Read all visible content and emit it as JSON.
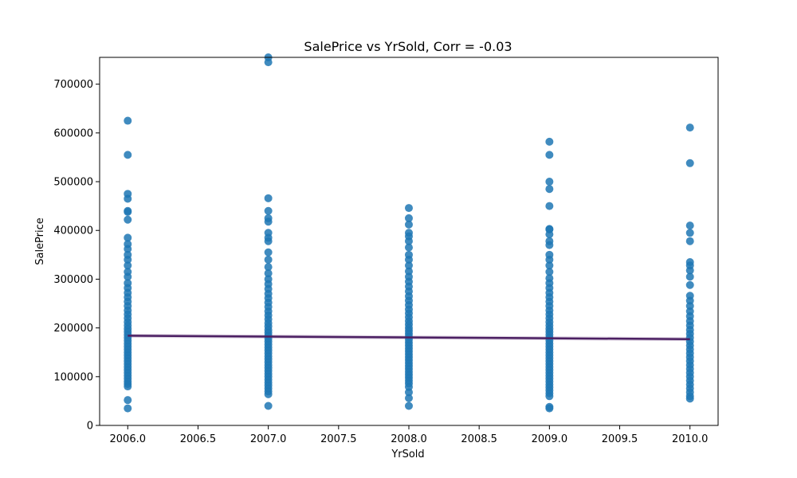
{
  "colors": {
    "points": "#1f77b4",
    "regression_line": "#4b1f62",
    "confidence_band": "#b9a3c4"
  },
  "chart_data": {
    "type": "scatter",
    "title": "SalePrice vs YrSold, Corr = -0.03",
    "xlabel": "YrSold",
    "ylabel": "SalePrice",
    "xlim": [
      2005.8,
      2010.2
    ],
    "ylim": [
      0,
      755000
    ],
    "x_ticks": [
      2006.0,
      2006.5,
      2007.0,
      2007.5,
      2008.0,
      2008.5,
      2009.0,
      2009.5,
      2010.0
    ],
    "x_tick_labels": [
      "2006.0",
      "2006.5",
      "2007.0",
      "2007.5",
      "2008.0",
      "2008.5",
      "2009.0",
      "2009.5",
      "2010.0"
    ],
    "y_ticks": [
      0,
      100000,
      200000,
      300000,
      400000,
      500000,
      600000,
      700000
    ],
    "y_tick_labels": [
      "0",
      "100000",
      "200000",
      "300000",
      "400000",
      "500000",
      "600000",
      "700000"
    ],
    "grid": false,
    "series": [
      {
        "points": [
          {
            "x": 2006,
            "y": 35000
          },
          {
            "x": 2006,
            "y": 52000
          },
          {
            "x": 2006,
            "y": 80000
          },
          {
            "x": 2006,
            "y": 85000
          },
          {
            "x": 2006,
            "y": 90000
          },
          {
            "x": 2006,
            "y": 96000
          },
          {
            "x": 2006,
            "y": 102000
          },
          {
            "x": 2006,
            "y": 108000
          },
          {
            "x": 2006,
            "y": 114000
          },
          {
            "x": 2006,
            "y": 120000
          },
          {
            "x": 2006,
            "y": 126000
          },
          {
            "x": 2006,
            "y": 132000
          },
          {
            "x": 2006,
            "y": 138000
          },
          {
            "x": 2006,
            "y": 144000
          },
          {
            "x": 2006,
            "y": 150000
          },
          {
            "x": 2006,
            "y": 156000
          },
          {
            "x": 2006,
            "y": 162000
          },
          {
            "x": 2006,
            "y": 168000
          },
          {
            "x": 2006,
            "y": 174000
          },
          {
            "x": 2006,
            "y": 180000
          },
          {
            "x": 2006,
            "y": 186000
          },
          {
            "x": 2006,
            "y": 192000
          },
          {
            "x": 2006,
            "y": 198000
          },
          {
            "x": 2006,
            "y": 205000
          },
          {
            "x": 2006,
            "y": 212000
          },
          {
            "x": 2006,
            "y": 220000
          },
          {
            "x": 2006,
            "y": 228000
          },
          {
            "x": 2006,
            "y": 236000
          },
          {
            "x": 2006,
            "y": 245000
          },
          {
            "x": 2006,
            "y": 254000
          },
          {
            "x": 2006,
            "y": 263000
          },
          {
            "x": 2006,
            "y": 272000
          },
          {
            "x": 2006,
            "y": 282000
          },
          {
            "x": 2006,
            "y": 292000
          },
          {
            "x": 2006,
            "y": 305000
          },
          {
            "x": 2006,
            "y": 315000
          },
          {
            "x": 2006,
            "y": 328000
          },
          {
            "x": 2006,
            "y": 340000
          },
          {
            "x": 2006,
            "y": 350000
          },
          {
            "x": 2006,
            "y": 362000
          },
          {
            "x": 2006,
            "y": 372000
          },
          {
            "x": 2006,
            "y": 385000
          },
          {
            "x": 2006,
            "y": 422000
          },
          {
            "x": 2006,
            "y": 438000
          },
          {
            "x": 2006,
            "y": 440000
          },
          {
            "x": 2006,
            "y": 465000
          },
          {
            "x": 2006,
            "y": 475000
          },
          {
            "x": 2006,
            "y": 555000
          },
          {
            "x": 2006,
            "y": 625000
          },
          {
            "x": 2007,
            "y": 40000
          },
          {
            "x": 2007,
            "y": 64000
          },
          {
            "x": 2007,
            "y": 70000
          },
          {
            "x": 2007,
            "y": 76000
          },
          {
            "x": 2007,
            "y": 82000
          },
          {
            "x": 2007,
            "y": 88000
          },
          {
            "x": 2007,
            "y": 94000
          },
          {
            "x": 2007,
            "y": 100000
          },
          {
            "x": 2007,
            "y": 106000
          },
          {
            "x": 2007,
            "y": 112000
          },
          {
            "x": 2007,
            "y": 118000
          },
          {
            "x": 2007,
            "y": 124000
          },
          {
            "x": 2007,
            "y": 130000
          },
          {
            "x": 2007,
            "y": 136000
          },
          {
            "x": 2007,
            "y": 142000
          },
          {
            "x": 2007,
            "y": 148000
          },
          {
            "x": 2007,
            "y": 154000
          },
          {
            "x": 2007,
            "y": 160000
          },
          {
            "x": 2007,
            "y": 166000
          },
          {
            "x": 2007,
            "y": 172000
          },
          {
            "x": 2007,
            "y": 178000
          },
          {
            "x": 2007,
            "y": 184000
          },
          {
            "x": 2007,
            "y": 190000
          },
          {
            "x": 2007,
            "y": 196000
          },
          {
            "x": 2007,
            "y": 203000
          },
          {
            "x": 2007,
            "y": 210000
          },
          {
            "x": 2007,
            "y": 218000
          },
          {
            "x": 2007,
            "y": 226000
          },
          {
            "x": 2007,
            "y": 234000
          },
          {
            "x": 2007,
            "y": 243000
          },
          {
            "x": 2007,
            "y": 252000
          },
          {
            "x": 2007,
            "y": 261000
          },
          {
            "x": 2007,
            "y": 270000
          },
          {
            "x": 2007,
            "y": 280000
          },
          {
            "x": 2007,
            "y": 290000
          },
          {
            "x": 2007,
            "y": 300000
          },
          {
            "x": 2007,
            "y": 312000
          },
          {
            "x": 2007,
            "y": 325000
          },
          {
            "x": 2007,
            "y": 340000
          },
          {
            "x": 2007,
            "y": 355000
          },
          {
            "x": 2007,
            "y": 378000
          },
          {
            "x": 2007,
            "y": 385000
          },
          {
            "x": 2007,
            "y": 395000
          },
          {
            "x": 2007,
            "y": 418000
          },
          {
            "x": 2007,
            "y": 425000
          },
          {
            "x": 2007,
            "y": 440000
          },
          {
            "x": 2007,
            "y": 466000
          },
          {
            "x": 2007,
            "y": 745000
          },
          {
            "x": 2007,
            "y": 755000
          },
          {
            "x": 2008,
            "y": 40000
          },
          {
            "x": 2008,
            "y": 56000
          },
          {
            "x": 2008,
            "y": 68000
          },
          {
            "x": 2008,
            "y": 79000
          },
          {
            "x": 2008,
            "y": 86000
          },
          {
            "x": 2008,
            "y": 92000
          },
          {
            "x": 2008,
            "y": 98000
          },
          {
            "x": 2008,
            "y": 104000
          },
          {
            "x": 2008,
            "y": 110000
          },
          {
            "x": 2008,
            "y": 116000
          },
          {
            "x": 2008,
            "y": 122000
          },
          {
            "x": 2008,
            "y": 128000
          },
          {
            "x": 2008,
            "y": 134000
          },
          {
            "x": 2008,
            "y": 140000
          },
          {
            "x": 2008,
            "y": 146000
          },
          {
            "x": 2008,
            "y": 152000
          },
          {
            "x": 2008,
            "y": 158000
          },
          {
            "x": 2008,
            "y": 164000
          },
          {
            "x": 2008,
            "y": 170000
          },
          {
            "x": 2008,
            "y": 176000
          },
          {
            "x": 2008,
            "y": 182000
          },
          {
            "x": 2008,
            "y": 188000
          },
          {
            "x": 2008,
            "y": 194000
          },
          {
            "x": 2008,
            "y": 200000
          },
          {
            "x": 2008,
            "y": 207000
          },
          {
            "x": 2008,
            "y": 214000
          },
          {
            "x": 2008,
            "y": 222000
          },
          {
            "x": 2008,
            "y": 230000
          },
          {
            "x": 2008,
            "y": 238000
          },
          {
            "x": 2008,
            "y": 247000
          },
          {
            "x": 2008,
            "y": 256000
          },
          {
            "x": 2008,
            "y": 265000
          },
          {
            "x": 2008,
            "y": 275000
          },
          {
            "x": 2008,
            "y": 285000
          },
          {
            "x": 2008,
            "y": 295000
          },
          {
            "x": 2008,
            "y": 305000
          },
          {
            "x": 2008,
            "y": 316000
          },
          {
            "x": 2008,
            "y": 328000
          },
          {
            "x": 2008,
            "y": 340000
          },
          {
            "x": 2008,
            "y": 350000
          },
          {
            "x": 2008,
            "y": 365000
          },
          {
            "x": 2008,
            "y": 378000
          },
          {
            "x": 2008,
            "y": 388000
          },
          {
            "x": 2008,
            "y": 395000
          },
          {
            "x": 2008,
            "y": 412000
          },
          {
            "x": 2008,
            "y": 425000
          },
          {
            "x": 2008,
            "y": 446000
          },
          {
            "x": 2009,
            "y": 35000
          },
          {
            "x": 2009,
            "y": 38000
          },
          {
            "x": 2009,
            "y": 60000
          },
          {
            "x": 2009,
            "y": 66000
          },
          {
            "x": 2009,
            "y": 72000
          },
          {
            "x": 2009,
            "y": 78000
          },
          {
            "x": 2009,
            "y": 84000
          },
          {
            "x": 2009,
            "y": 90000
          },
          {
            "x": 2009,
            "y": 96000
          },
          {
            "x": 2009,
            "y": 102000
          },
          {
            "x": 2009,
            "y": 108000
          },
          {
            "x": 2009,
            "y": 114000
          },
          {
            "x": 2009,
            "y": 120000
          },
          {
            "x": 2009,
            "y": 126000
          },
          {
            "x": 2009,
            "y": 132000
          },
          {
            "x": 2009,
            "y": 138000
          },
          {
            "x": 2009,
            "y": 144000
          },
          {
            "x": 2009,
            "y": 150000
          },
          {
            "x": 2009,
            "y": 156000
          },
          {
            "x": 2009,
            "y": 162000
          },
          {
            "x": 2009,
            "y": 168000
          },
          {
            "x": 2009,
            "y": 174000
          },
          {
            "x": 2009,
            "y": 180000
          },
          {
            "x": 2009,
            "y": 186000
          },
          {
            "x": 2009,
            "y": 192000
          },
          {
            "x": 2009,
            "y": 198000
          },
          {
            "x": 2009,
            "y": 205000
          },
          {
            "x": 2009,
            "y": 212000
          },
          {
            "x": 2009,
            "y": 220000
          },
          {
            "x": 2009,
            "y": 228000
          },
          {
            "x": 2009,
            "y": 236000
          },
          {
            "x": 2009,
            "y": 245000
          },
          {
            "x": 2009,
            "y": 254000
          },
          {
            "x": 2009,
            "y": 263000
          },
          {
            "x": 2009,
            "y": 272000
          },
          {
            "x": 2009,
            "y": 282000
          },
          {
            "x": 2009,
            "y": 292000
          },
          {
            "x": 2009,
            "y": 302000
          },
          {
            "x": 2009,
            "y": 315000
          },
          {
            "x": 2009,
            "y": 328000
          },
          {
            "x": 2009,
            "y": 340000
          },
          {
            "x": 2009,
            "y": 350000
          },
          {
            "x": 2009,
            "y": 370000
          },
          {
            "x": 2009,
            "y": 378000
          },
          {
            "x": 2009,
            "y": 392000
          },
          {
            "x": 2009,
            "y": 402000
          },
          {
            "x": 2009,
            "y": 403000
          },
          {
            "x": 2009,
            "y": 450000
          },
          {
            "x": 2009,
            "y": 485000
          },
          {
            "x": 2009,
            "y": 500000
          },
          {
            "x": 2009,
            "y": 555000
          },
          {
            "x": 2009,
            "y": 582000
          },
          {
            "x": 2010,
            "y": 55000
          },
          {
            "x": 2010,
            "y": 60000
          },
          {
            "x": 2010,
            "y": 68000
          },
          {
            "x": 2010,
            "y": 76000
          },
          {
            "x": 2010,
            "y": 84000
          },
          {
            "x": 2010,
            "y": 92000
          },
          {
            "x": 2010,
            "y": 100000
          },
          {
            "x": 2010,
            "y": 108000
          },
          {
            "x": 2010,
            "y": 116000
          },
          {
            "x": 2010,
            "y": 124000
          },
          {
            "x": 2010,
            "y": 132000
          },
          {
            "x": 2010,
            "y": 140000
          },
          {
            "x": 2010,
            "y": 148000
          },
          {
            "x": 2010,
            "y": 156000
          },
          {
            "x": 2010,
            "y": 164000
          },
          {
            "x": 2010,
            "y": 172000
          },
          {
            "x": 2010,
            "y": 180000
          },
          {
            "x": 2010,
            "y": 188000
          },
          {
            "x": 2010,
            "y": 196000
          },
          {
            "x": 2010,
            "y": 205000
          },
          {
            "x": 2010,
            "y": 214000
          },
          {
            "x": 2010,
            "y": 224000
          },
          {
            "x": 2010,
            "y": 234000
          },
          {
            "x": 2010,
            "y": 245000
          },
          {
            "x": 2010,
            "y": 256000
          },
          {
            "x": 2010,
            "y": 266000
          },
          {
            "x": 2010,
            "y": 288000
          },
          {
            "x": 2010,
            "y": 305000
          },
          {
            "x": 2010,
            "y": 318000
          },
          {
            "x": 2010,
            "y": 328000
          },
          {
            "x": 2010,
            "y": 335000
          },
          {
            "x": 2010,
            "y": 378000
          },
          {
            "x": 2010,
            "y": 395000
          },
          {
            "x": 2010,
            "y": 410000
          },
          {
            "x": 2010,
            "y": 538000
          },
          {
            "x": 2010,
            "y": 611000
          }
        ]
      }
    ],
    "regression_line": {
      "x": [
        2006,
        2010
      ],
      "y": [
        184000,
        177000
      ],
      "band_halfwidth": 4000
    }
  }
}
